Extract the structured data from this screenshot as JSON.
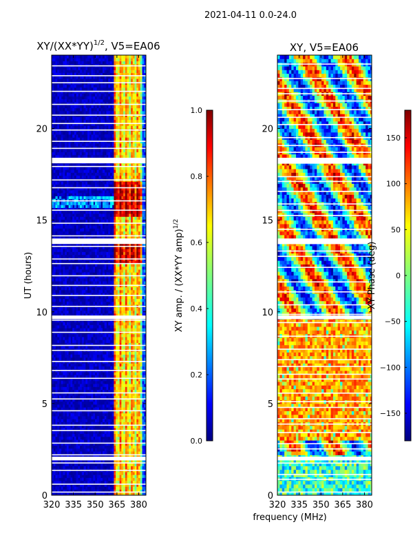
{
  "figure": {
    "suptitle": "2021-04-11 0.0-24.0",
    "shared_xlabel": "frequency (MHz)"
  },
  "chart_data": [
    {
      "type": "heatmap",
      "title": "XY/(XX*YY)",
      "title_exponent": "1/2",
      "title_suffix": ", V5=EA06",
      "xlabel": "",
      "ylabel": "UT (hours)",
      "xlim": [
        320,
        385
      ],
      "ylim": [
        0,
        24
      ],
      "xticks": [
        320,
        335,
        350,
        365,
        380
      ],
      "yticks": [
        0,
        5,
        10,
        15,
        20
      ],
      "colorbar": {
        "label": "XY amp. / (XX*YY amp)",
        "label_exponent": "1/2",
        "range": [
          0.0,
          1.0
        ],
        "ticks": [
          "0.0",
          "0.2",
          "0.4",
          "0.6",
          "0.8",
          "1.0"
        ]
      },
      "flagged_bands_hours": [
        [
          1.9,
          2.1
        ],
        [
          9.6,
          9.8
        ],
        [
          13.7,
          14.0
        ],
        [
          18.1,
          18.4
        ]
      ],
      "high_amplitude_columns_mhz": [
        363,
        367,
        371,
        375,
        379
      ],
      "notes": "low amplitude (~0.05) below 362 MHz; higher amplitude (0.4-0.9) 362-382 MHz"
    },
    {
      "type": "heatmap",
      "title": "XY, V5=EA06",
      "xlabel": "",
      "ylabel": "",
      "xlim": [
        320,
        385
      ],
      "ylim": [
        0,
        24
      ],
      "xticks": [
        320,
        335,
        350,
        365,
        380
      ],
      "yticks": [
        0,
        5,
        10,
        15,
        20
      ],
      "colorbar": {
        "label": "XY Phase (deg)",
        "range": [
          -180,
          180
        ],
        "ticks": [
          "−150",
          "−100",
          "−50",
          "0",
          "50",
          "100",
          "150"
        ]
      },
      "flagged_bands_hours": [
        [
          1.9,
          2.1
        ],
        [
          9.6,
          9.8
        ],
        [
          13.7,
          14.0
        ],
        [
          18.1,
          18.4
        ]
      ],
      "notes": "phase mostly 0-100 deg between 3 and 9 h; varied phases elsewhere"
    }
  ],
  "colors": {
    "jet_low": "#00007f",
    "jet_mid": "#7fff7f",
    "jet_high": "#7f0000"
  }
}
